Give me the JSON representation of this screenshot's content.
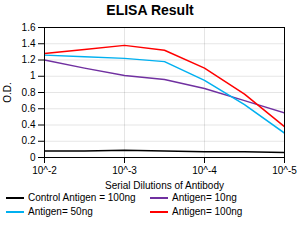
{
  "chart_data": {
    "type": "line",
    "title": "ELISA Result",
    "xlabel": "Serial Dilutions of Antibody",
    "ylabel": "O.D.",
    "log": "x",
    "x": [
      0.01,
      0.0031622776601683794,
      0.001,
      0.00031622776601683794,
      0.0001,
      3.1622776601683795e-05,
      1e-05
    ],
    "xlim": [
      0.01,
      1e-05
    ],
    "xticks": [
      {
        "value": 0.01,
        "label": "10^-2"
      },
      {
        "value": 0.001,
        "label": "10^-3"
      },
      {
        "value": 0.0001,
        "label": "10^-4"
      },
      {
        "value": 1e-05,
        "label": "10^-5"
      }
    ],
    "ylim": [
      0,
      1.6
    ],
    "yticks": [
      0,
      0.2,
      0.4,
      0.6,
      0.8,
      1,
      1.2,
      1.4,
      1.6
    ],
    "grid": true,
    "legend": "bottom",
    "series": [
      {
        "name": "Control Antigen = 100ng",
        "color": "#000000",
        "values": [
          0.08,
          0.08,
          0.09,
          0.08,
          0.07,
          0.07,
          0.06
        ]
      },
      {
        "name": "Antigen= 10ng",
        "color": "#7030a0",
        "values": [
          1.2,
          1.1,
          1.01,
          0.96,
          0.85,
          0.7,
          0.55
        ]
      },
      {
        "name": "Antigen= 50ng",
        "color": "#00b0f0",
        "values": [
          1.26,
          1.24,
          1.22,
          1.18,
          0.95,
          0.65,
          0.3
        ]
      },
      {
        "name": "Antigen= 100ng",
        "color": "#ff0000",
        "values": [
          1.28,
          1.33,
          1.38,
          1.32,
          1.1,
          0.78,
          0.38
        ]
      }
    ]
  }
}
